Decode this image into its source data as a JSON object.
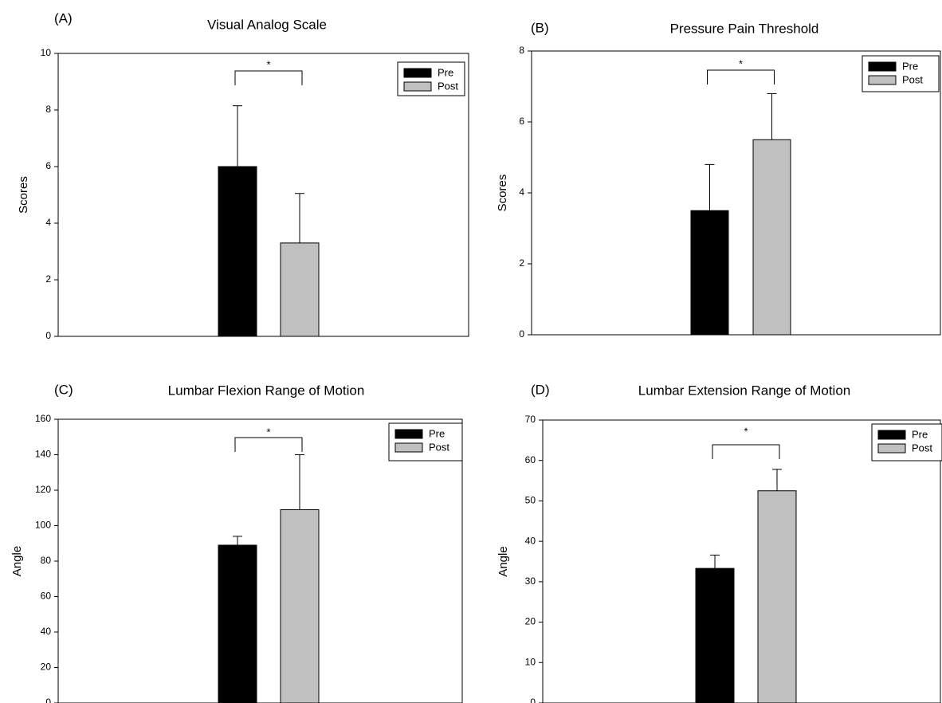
{
  "chart_data": [
    {
      "type": "bar",
      "panel_label": "(A)",
      "title": "Visual Analog Scale",
      "xlabel": "",
      "ylabel": "Scores",
      "ylim": [
        0,
        10
      ],
      "yticks": [
        "0",
        "2",
        "4",
        "6",
        "8",
        "10"
      ],
      "grid": false,
      "legend_position": "top-right",
      "series": [
        {
          "name": "Pre",
          "value": 6.0,
          "error": 2.15,
          "color": "#000000"
        },
        {
          "name": "Post",
          "value": 3.3,
          "error": 1.75,
          "color": "#c0c0c0"
        }
      ],
      "significance": "*"
    },
    {
      "type": "bar",
      "panel_label": "(B)",
      "title": "Pressure Pain Threshold",
      "xlabel": "",
      "ylabel": "Scores",
      "ylim": [
        0,
        8
      ],
      "yticks": [
        "0",
        "2",
        "4",
        "6",
        "8"
      ],
      "grid": false,
      "legend_position": "top-right",
      "series": [
        {
          "name": "Pre",
          "value": 3.5,
          "error": 1.3,
          "color": "#000000"
        },
        {
          "name": "Post",
          "value": 5.5,
          "error": 1.3,
          "color": "#c0c0c0"
        }
      ],
      "significance": "*"
    },
    {
      "type": "bar",
      "panel_label": "(C)",
      "title": "Lumbar Flexion Range of Motion",
      "xlabel": "",
      "ylabel": "Angle",
      "ylim": [
        0,
        160
      ],
      "yticks": [
        "0",
        "20",
        "40",
        "60",
        "80",
        "100",
        "120",
        "140",
        "160"
      ],
      "grid": false,
      "legend_position": "top-right",
      "series": [
        {
          "name": "Pre",
          "value": 89,
          "error": 5,
          "color": "#000000"
        },
        {
          "name": "Post",
          "value": 109,
          "error": 31,
          "color": "#c0c0c0"
        }
      ],
      "significance": "*"
    },
    {
      "type": "bar",
      "panel_label": "(D)",
      "title": "Lumbar Extension Range of Motion",
      "xlabel": "",
      "ylabel": "Angle",
      "ylim": [
        0,
        70
      ],
      "yticks": [
        "0",
        "10",
        "20",
        "30",
        "40",
        "50",
        "60",
        "70"
      ],
      "grid": false,
      "legend_position": "top-right",
      "series": [
        {
          "name": "Pre",
          "value": 33.3,
          "error": 3.3,
          "color": "#000000"
        },
        {
          "name": "Post",
          "value": 52.5,
          "error": 5.3,
          "color": "#c0c0c0"
        }
      ],
      "significance": "*"
    }
  ]
}
